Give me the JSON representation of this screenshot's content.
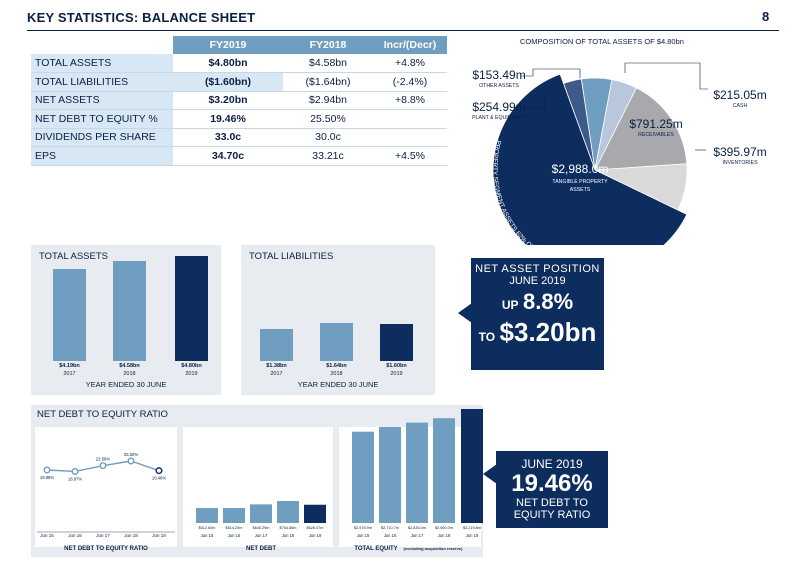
{
  "header": {
    "title": "KEY STATISTICS: BALANCE SHEET",
    "page": "8"
  },
  "table": {
    "columns": [
      "FY2019",
      "FY2018",
      "Incr/(Decr)"
    ],
    "rows": [
      {
        "label": "Total assets",
        "fy2019": "$4.80bn",
        "fy2018": "$4.58bn",
        "change": "+4.8%"
      },
      {
        "label": "Total liabilities",
        "fy2019": "($1.60bn)",
        "fy2018": "($1.64bn)",
        "change": "(-2.4%)"
      },
      {
        "label": "Net assets",
        "fy2019": "$3.20bn",
        "fy2018": "$2.94bn",
        "change": "+8.8%"
      },
      {
        "label": "Net debt to equity %",
        "fy2019": "19.46%",
        "fy2018": "25.50%",
        "change": ""
      },
      {
        "label": "Dividends per share",
        "fy2019": "33.0c",
        "fy2018": "30.0c",
        "change": ""
      },
      {
        "label": "EPS",
        "fy2019": "34.70c",
        "fy2018": "33.21c",
        "change": "+4.5%"
      }
    ]
  },
  "pie": {
    "title": "COMPOSITION OF TOTAL ASSETS OF $4.80bn",
    "arc_label": "PROPERTY SEGMENT ASSETS 62% OF TOTAL ASSETS",
    "colors": {
      "navy": "#0d2d5e",
      "grey": "#a7a9ac",
      "light": "#d9d9d9",
      "blue": "#6f9ec0",
      "mid": "#3e5a8a",
      "pale": "#b9c7dc"
    },
    "slices": [
      {
        "name": "TANGIBLE PROPERTY ASSETS",
        "value_label": "$2,988.0m",
        "value": 2988.0
      },
      {
        "name": "RECEIVABLES",
        "value_label": "$791.25m",
        "value": 791.25
      },
      {
        "name": "INVENTORIES",
        "value_label": "$395.97m",
        "value": 395.97
      },
      {
        "name": "CASH",
        "value_label": "$215.05m",
        "value": 215.05
      },
      {
        "name": "PLANT & EQUIPMENT",
        "value_label": "$254.99m",
        "value": 254.99
      },
      {
        "name": "OTHER ASSETS",
        "value_label": "$153.49m",
        "value": 153.49
      }
    ]
  },
  "assets_panel": {
    "title": "TOTAL ASSETS",
    "footer": "YEAR ENDED 30 JUNE",
    "bars": [
      {
        "label": "$4.19bn",
        "year": "2017",
        "value": 4.19
      },
      {
        "label": "$4.58bn",
        "year": "2018",
        "value": 4.58
      },
      {
        "label": "$4.80bn",
        "year": "2019",
        "value": 4.8
      }
    ]
  },
  "liabilities_panel": {
    "title": "TOTAL LIABILITIES",
    "footer": "YEAR ENDED 30 JUNE",
    "bars": [
      {
        "label": "$1.38bn",
        "year": "2017",
        "value": 1.38
      },
      {
        "label": "$1.64bn",
        "year": "2018",
        "value": 1.64
      },
      {
        "label": "$1.60bn",
        "year": "2019",
        "value": 1.6
      }
    ]
  },
  "net_asset_box": {
    "line1": "NET ASSET POSITION",
    "line2": "JUNE 2019",
    "up_label": "UP",
    "up_value": "8.8%",
    "to_label": "TO",
    "to_value": "$3.20bn"
  },
  "ratio_panel": {
    "title": "NET DEBT TO EQUITY RATIO",
    "line": {
      "label": "NET DEBT TO EQUITY RATIO",
      "points": [
        {
          "x": "Jun 15",
          "y": 19.88,
          "label": "19.88%"
        },
        {
          "x": "Jun 16",
          "y": 18.97,
          "label": "18.97%"
        },
        {
          "x": "Jun 17",
          "y": 22.59,
          "label": "22.59%"
        },
        {
          "x": "Jun 18",
          "y": 25.5,
          "label": "25.50%"
        },
        {
          "x": "Jun 19",
          "y": 19.46,
          "label": "19.46%"
        }
      ]
    },
    "net_debt": {
      "label": "NET DEBT",
      "bars": [
        {
          "x": "Jun 15",
          "y": 512.6,
          "label": "$512.60m"
        },
        {
          "x": "Jun 16",
          "y": 514.2,
          "label": "$514.20m"
        },
        {
          "x": "Jun 17",
          "y": 640.29,
          "label": "$640.29m"
        },
        {
          "x": "Jun 18",
          "y": 754.85,
          "label": "$754.85m"
        },
        {
          "x": "Jun 19",
          "y": 626.47,
          "label": "$626.47m"
        }
      ]
    },
    "total_equity": {
      "label": "TOTAL EQUITY",
      "note": "(excluding acquisition reserve)",
      "bars": [
        {
          "x": "Jun 15",
          "y": 2578.9,
          "label": "$2,578.9m"
        },
        {
          "x": "Jun 16",
          "y": 2710.7,
          "label": "$2,710.7m"
        },
        {
          "x": "Jun 17",
          "y": 2835.0,
          "label": "$2,835.0m"
        },
        {
          "x": "Jun 18",
          "y": 2960.0,
          "label": "$2,960.0m"
        },
        {
          "x": "Jun 19",
          "y": 3219.8,
          "label": "$3,219.8m"
        }
      ]
    }
  },
  "ratio_box": {
    "line1": "JUNE 2019",
    "value": "19.46%",
    "line2": "NET DEBT TO",
    "line3": "EQUITY RATIO"
  }
}
